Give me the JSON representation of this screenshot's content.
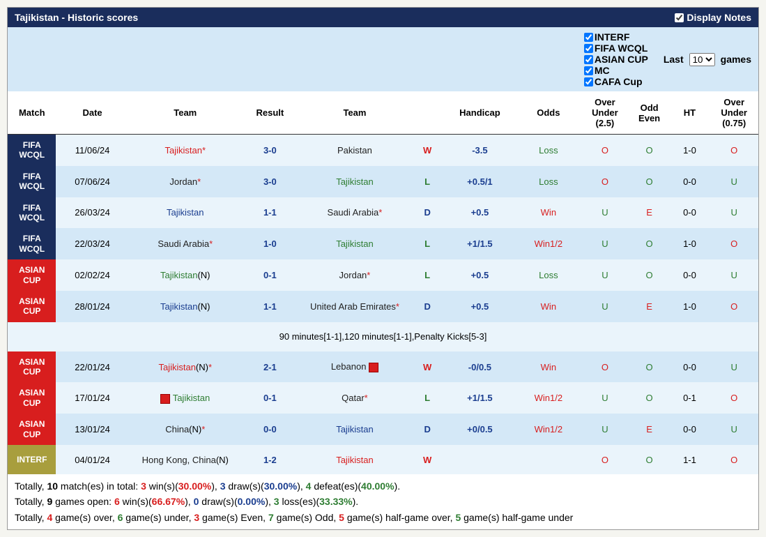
{
  "header": {
    "title": "Tajikistan - Historic scores",
    "displayNotes": "Display Notes"
  },
  "filters": {
    "items": [
      {
        "label": "INTERF",
        "checked": true
      },
      {
        "label": "FIFA WCQL",
        "checked": true
      },
      {
        "label": "ASIAN CUP",
        "checked": true
      },
      {
        "label": "MC",
        "checked": true
      },
      {
        "label": "CAFA Cup",
        "checked": true
      }
    ],
    "lastLabel": "Last",
    "gamesLabel": "games",
    "selectValue": "10"
  },
  "columns": [
    "Match",
    "Date",
    "Team",
    "Result",
    "Team",
    "",
    "Handicap",
    "Odds",
    "Over Under (2.5)",
    "Odd Even",
    "HT",
    "Over Under (0.75)"
  ],
  "rows": [
    {
      "badge": "FIFA WCQL",
      "badgeClass": "badge-wcql",
      "rowClass": "row-light",
      "date": "11/06/24",
      "team1": {
        "text": "Tajikistan",
        "color": "txt-red",
        "star": true,
        "neutral": false,
        "card": false
      },
      "result": {
        "text": "3-0",
        "color": "txt-blue"
      },
      "team2": {
        "text": "Pakistan",
        "color": "txt-black",
        "star": false,
        "neutral": false,
        "card": false
      },
      "wld": {
        "text": "W",
        "color": "txt-red"
      },
      "handicap": {
        "text": "-3.5",
        "color": "txt-blue"
      },
      "odds": {
        "text": "Loss",
        "color": "txt-green"
      },
      "ou25": {
        "text": "O",
        "color": "txt-red"
      },
      "oe": {
        "text": "O",
        "color": "txt-green"
      },
      "ht": "1-0",
      "ou075": {
        "text": "O",
        "color": "txt-red"
      }
    },
    {
      "badge": "FIFA WCQL",
      "badgeClass": "badge-wcql",
      "rowClass": "row-dark",
      "date": "07/06/24",
      "team1": {
        "text": "Jordan",
        "color": "txt-black",
        "star": true,
        "neutral": false,
        "card": false
      },
      "result": {
        "text": "3-0",
        "color": "txt-blue"
      },
      "team2": {
        "text": "Tajikistan",
        "color": "txt-green",
        "star": false,
        "neutral": false,
        "card": false
      },
      "wld": {
        "text": "L",
        "color": "txt-green"
      },
      "handicap": {
        "text": "+0.5/1",
        "color": "txt-blue"
      },
      "odds": {
        "text": "Loss",
        "color": "txt-green"
      },
      "ou25": {
        "text": "O",
        "color": "txt-red"
      },
      "oe": {
        "text": "O",
        "color": "txt-green"
      },
      "ht": "0-0",
      "ou075": {
        "text": "U",
        "color": "txt-green"
      }
    },
    {
      "badge": "FIFA WCQL",
      "badgeClass": "badge-wcql",
      "rowClass": "row-light",
      "date": "26/03/24",
      "team1": {
        "text": "Tajikistan",
        "color": "txt-blue",
        "star": false,
        "neutral": false,
        "card": false
      },
      "result": {
        "text": "1-1",
        "color": "txt-blue"
      },
      "team2": {
        "text": "Saudi Arabia",
        "color": "txt-black",
        "star": true,
        "neutral": false,
        "card": false
      },
      "wld": {
        "text": "D",
        "color": "txt-blue"
      },
      "handicap": {
        "text": "+0.5",
        "color": "txt-blue"
      },
      "odds": {
        "text": "Win",
        "color": "txt-red"
      },
      "ou25": {
        "text": "U",
        "color": "txt-green"
      },
      "oe": {
        "text": "E",
        "color": "txt-red"
      },
      "ht": "0-0",
      "ou075": {
        "text": "U",
        "color": "txt-green"
      }
    },
    {
      "badge": "FIFA WCQL",
      "badgeClass": "badge-wcql",
      "rowClass": "row-dark",
      "date": "22/03/24",
      "team1": {
        "text": "Saudi Arabia",
        "color": "txt-black",
        "star": true,
        "neutral": false,
        "card": false
      },
      "result": {
        "text": "1-0",
        "color": "txt-blue"
      },
      "team2": {
        "text": "Tajikistan",
        "color": "txt-green",
        "star": false,
        "neutral": false,
        "card": false
      },
      "wld": {
        "text": "L",
        "color": "txt-green"
      },
      "handicap": {
        "text": "+1/1.5",
        "color": "txt-blue"
      },
      "odds": {
        "text": "Win1/2",
        "color": "txt-red"
      },
      "ou25": {
        "text": "U",
        "color": "txt-green"
      },
      "oe": {
        "text": "O",
        "color": "txt-green"
      },
      "ht": "1-0",
      "ou075": {
        "text": "O",
        "color": "txt-red"
      }
    },
    {
      "badge": "ASIAN CUP",
      "badgeClass": "badge-asian",
      "rowClass": "row-light",
      "date": "02/02/24",
      "team1": {
        "text": "Tajikistan",
        "color": "txt-green",
        "star": false,
        "neutral": true,
        "card": false
      },
      "result": {
        "text": "0-1",
        "color": "txt-blue"
      },
      "team2": {
        "text": "Jordan",
        "color": "txt-black",
        "star": true,
        "neutral": false,
        "card": false
      },
      "wld": {
        "text": "L",
        "color": "txt-green"
      },
      "handicap": {
        "text": "+0.5",
        "color": "txt-blue"
      },
      "odds": {
        "text": "Loss",
        "color": "txt-green"
      },
      "ou25": {
        "text": "U",
        "color": "txt-green"
      },
      "oe": {
        "text": "O",
        "color": "txt-green"
      },
      "ht": "0-0",
      "ou075": {
        "text": "U",
        "color": "txt-green"
      }
    },
    {
      "badge": "ASIAN CUP",
      "badgeClass": "badge-asian",
      "rowClass": "row-dark",
      "date": "28/01/24",
      "team1": {
        "text": "Tajikistan",
        "color": "txt-blue",
        "star": false,
        "neutral": true,
        "card": false
      },
      "result": {
        "text": "1-1",
        "color": "txt-blue"
      },
      "team2": {
        "text": "United Arab Emirates",
        "color": "txt-black",
        "star": true,
        "neutral": false,
        "card": false
      },
      "wld": {
        "text": "D",
        "color": "txt-blue"
      },
      "handicap": {
        "text": "+0.5",
        "color": "txt-blue"
      },
      "odds": {
        "text": "Win",
        "color": "txt-red"
      },
      "ou25": {
        "text": "U",
        "color": "txt-green"
      },
      "oe": {
        "text": "E",
        "color": "txt-red"
      },
      "ht": "1-0",
      "ou075": {
        "text": "O",
        "color": "txt-red"
      },
      "note": "90 minutes[1-1],120 minutes[1-1],Penalty Kicks[5-3]"
    },
    {
      "badge": "ASIAN CUP",
      "badgeClass": "badge-asian",
      "rowClass": "row-dark",
      "date": "22/01/24",
      "team1": {
        "text": "Tajikistan",
        "color": "txt-red",
        "star": true,
        "neutral": true,
        "card": false
      },
      "result": {
        "text": "2-1",
        "color": "txt-blue"
      },
      "team2": {
        "text": "Lebanon",
        "color": "txt-black",
        "star": false,
        "neutral": false,
        "card": true,
        "cardPos": "after"
      },
      "wld": {
        "text": "W",
        "color": "txt-red"
      },
      "handicap": {
        "text": "-0/0.5",
        "color": "txt-blue"
      },
      "odds": {
        "text": "Win",
        "color": "txt-red"
      },
      "ou25": {
        "text": "O",
        "color": "txt-red"
      },
      "oe": {
        "text": "O",
        "color": "txt-green"
      },
      "ht": "0-0",
      "ou075": {
        "text": "U",
        "color": "txt-green"
      }
    },
    {
      "badge": "ASIAN CUP",
      "badgeClass": "badge-asian",
      "rowClass": "row-light",
      "date": "17/01/24",
      "team1": {
        "text": "Tajikistan",
        "color": "txt-green",
        "star": false,
        "neutral": false,
        "card": true,
        "cardPos": "before"
      },
      "result": {
        "text": "0-1",
        "color": "txt-blue"
      },
      "team2": {
        "text": "Qatar",
        "color": "txt-black",
        "star": true,
        "neutral": false,
        "card": false
      },
      "wld": {
        "text": "L",
        "color": "txt-green"
      },
      "handicap": {
        "text": "+1/1.5",
        "color": "txt-blue"
      },
      "odds": {
        "text": "Win1/2",
        "color": "txt-red"
      },
      "ou25": {
        "text": "U",
        "color": "txt-green"
      },
      "oe": {
        "text": "O",
        "color": "txt-green"
      },
      "ht": "0-1",
      "ou075": {
        "text": "O",
        "color": "txt-red"
      }
    },
    {
      "badge": "ASIAN CUP",
      "badgeClass": "badge-asian",
      "rowClass": "row-dark",
      "date": "13/01/24",
      "team1": {
        "text": "China",
        "color": "txt-black",
        "star": true,
        "neutral": true,
        "card": false
      },
      "result": {
        "text": "0-0",
        "color": "txt-blue"
      },
      "team2": {
        "text": "Tajikistan",
        "color": "txt-blue",
        "star": false,
        "neutral": false,
        "card": false
      },
      "wld": {
        "text": "D",
        "color": "txt-blue"
      },
      "handicap": {
        "text": "+0/0.5",
        "color": "txt-blue"
      },
      "odds": {
        "text": "Win1/2",
        "color": "txt-red"
      },
      "ou25": {
        "text": "U",
        "color": "txt-green"
      },
      "oe": {
        "text": "E",
        "color": "txt-red"
      },
      "ht": "0-0",
      "ou075": {
        "text": "U",
        "color": "txt-green"
      }
    },
    {
      "badge": "INTERF",
      "badgeClass": "badge-interf",
      "rowClass": "row-light",
      "date": "04/01/24",
      "team1": {
        "text": "Hong Kong, China",
        "color": "txt-black",
        "star": false,
        "neutral": true,
        "card": false
      },
      "result": {
        "text": "1-2",
        "color": "txt-blue"
      },
      "team2": {
        "text": "Tajikistan",
        "color": "txt-red",
        "star": false,
        "neutral": false,
        "card": false
      },
      "wld": {
        "text": "W",
        "color": "txt-red"
      },
      "handicap": {
        "text": "",
        "color": ""
      },
      "odds": {
        "text": "",
        "color": ""
      },
      "ou25": {
        "text": "O",
        "color": "txt-red"
      },
      "oe": {
        "text": "O",
        "color": "txt-green"
      },
      "ht": "1-1",
      "ou075": {
        "text": "O",
        "color": "txt-red"
      }
    }
  ],
  "summary": {
    "line1": {
      "parts": [
        {
          "t": "Totally, ",
          "c": ""
        },
        {
          "t": "10",
          "c": "b"
        },
        {
          "t": " match(es) in total: ",
          "c": ""
        },
        {
          "t": "3",
          "c": "b txt-red"
        },
        {
          "t": " win(s)(",
          "c": ""
        },
        {
          "t": "30.00%",
          "c": "b txt-red"
        },
        {
          "t": "), ",
          "c": ""
        },
        {
          "t": "3",
          "c": "b txt-blue"
        },
        {
          "t": " draw(s)(",
          "c": ""
        },
        {
          "t": "30.00%",
          "c": "b txt-blue"
        },
        {
          "t": "), ",
          "c": ""
        },
        {
          "t": "4",
          "c": "b txt-green"
        },
        {
          "t": " defeat(es)(",
          "c": ""
        },
        {
          "t": "40.00%",
          "c": "b txt-green"
        },
        {
          "t": ").",
          "c": ""
        }
      ]
    },
    "line2": {
      "parts": [
        {
          "t": "Totally, ",
          "c": ""
        },
        {
          "t": "9",
          "c": "b"
        },
        {
          "t": " games open: ",
          "c": ""
        },
        {
          "t": "6",
          "c": "b txt-red"
        },
        {
          "t": " win(s)(",
          "c": ""
        },
        {
          "t": "66.67%",
          "c": "b txt-red"
        },
        {
          "t": "), ",
          "c": ""
        },
        {
          "t": "0",
          "c": "b txt-blue"
        },
        {
          "t": " draw(s)(",
          "c": ""
        },
        {
          "t": "0.00%",
          "c": "b txt-blue"
        },
        {
          "t": "), ",
          "c": ""
        },
        {
          "t": "3",
          "c": "b txt-green"
        },
        {
          "t": " loss(es)(",
          "c": ""
        },
        {
          "t": "33.33%",
          "c": "b txt-green"
        },
        {
          "t": ").",
          "c": ""
        }
      ]
    },
    "line3": {
      "parts": [
        {
          "t": "Totally, ",
          "c": ""
        },
        {
          "t": "4",
          "c": "b txt-red"
        },
        {
          "t": " game(s) over, ",
          "c": ""
        },
        {
          "t": "6",
          "c": "b txt-green"
        },
        {
          "t": " game(s) under, ",
          "c": ""
        },
        {
          "t": "3",
          "c": "b txt-red"
        },
        {
          "t": " game(s) Even, ",
          "c": ""
        },
        {
          "t": "7",
          "c": "b txt-green"
        },
        {
          "t": " game(s) Odd, ",
          "c": ""
        },
        {
          "t": "5",
          "c": "b txt-red"
        },
        {
          "t": " game(s) half-game over, ",
          "c": ""
        },
        {
          "t": "5",
          "c": "b txt-green"
        },
        {
          "t": " game(s) half-game under",
          "c": ""
        }
      ]
    }
  }
}
